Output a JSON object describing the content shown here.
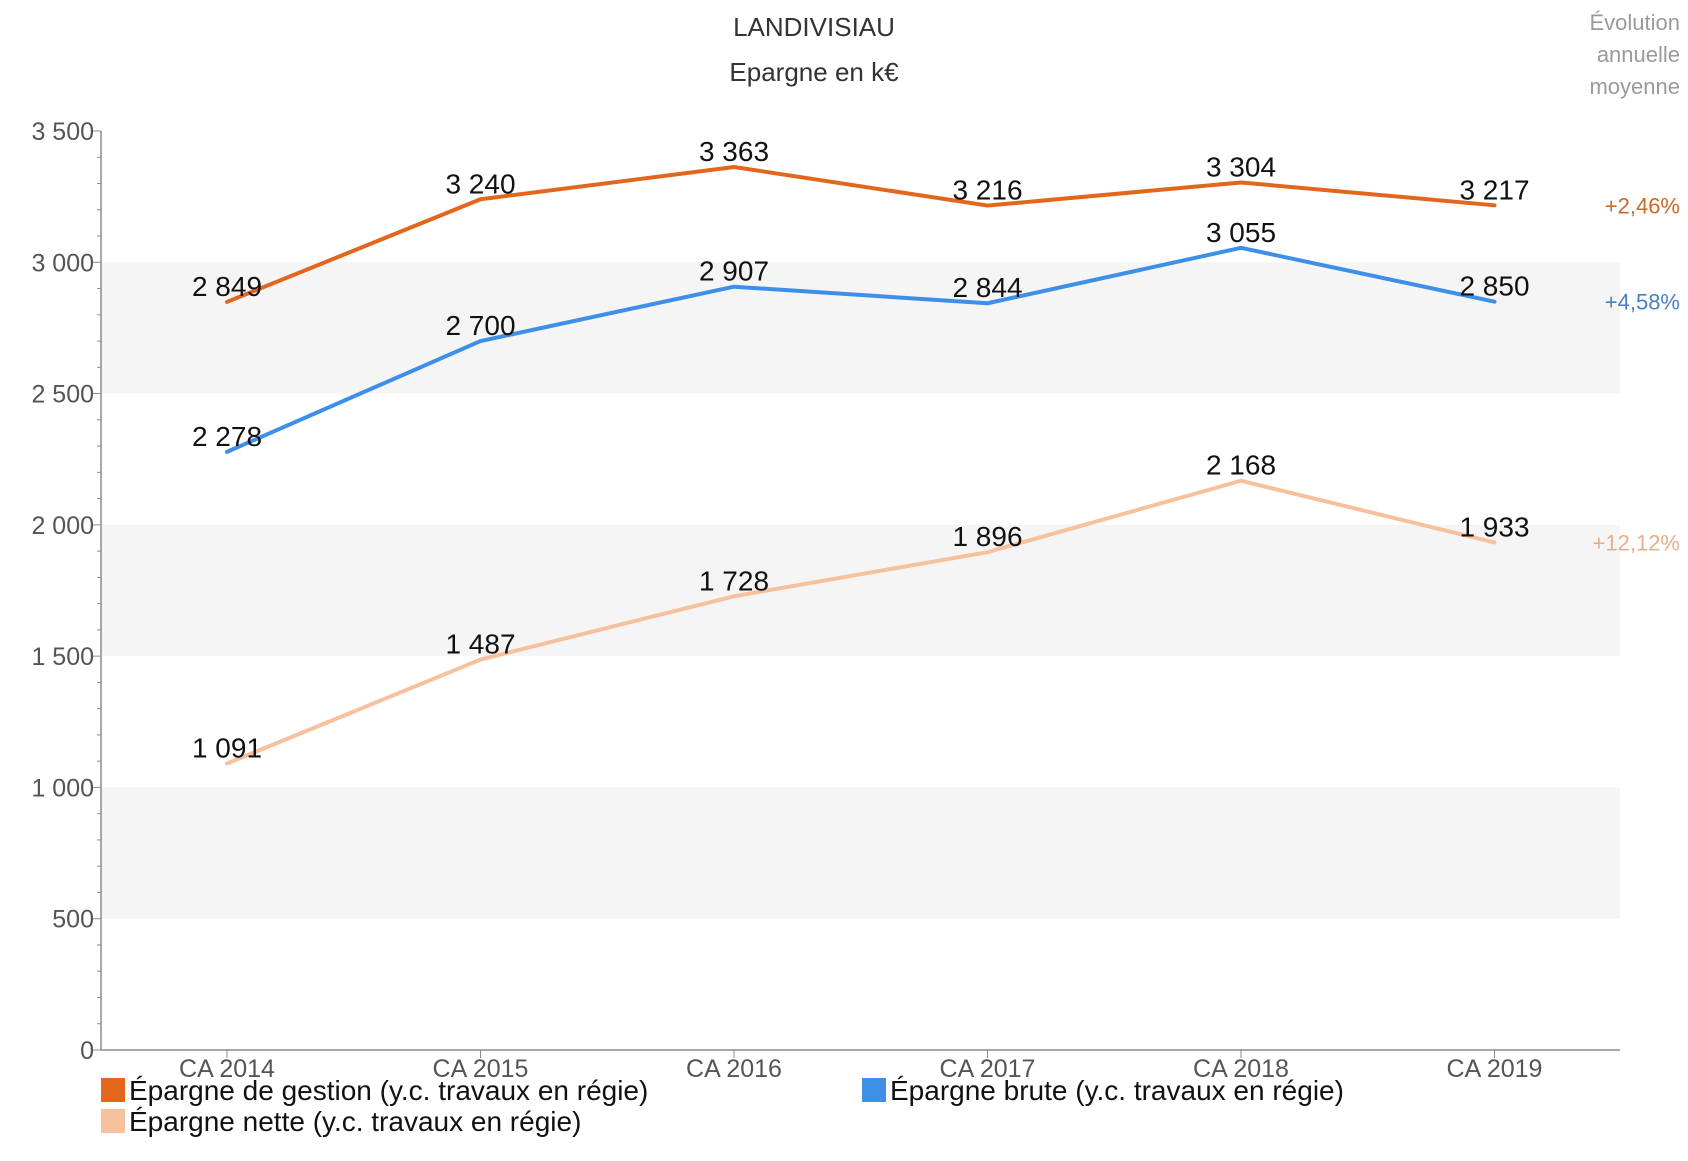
{
  "chart_data": {
    "type": "line",
    "title": "LANDIVISIAU",
    "subtitle": "Epargne en k€",
    "side_title": [
      "Évolution",
      "annuelle",
      "moyenne"
    ],
    "categories": [
      "CA 2014",
      "CA 2015",
      "CA 2016",
      "CA 2017",
      "CA 2018",
      "CA 2019"
    ],
    "ylim": [
      0,
      3500
    ],
    "yticks": [
      0,
      500,
      1000,
      1500,
      2000,
      2500,
      3000,
      3500
    ],
    "ytick_labels": [
      "0",
      "500",
      "1 000",
      "1 500",
      "2 000",
      "2 500",
      "3 000",
      "3 500"
    ],
    "grid": "alternating horizontal bands",
    "band_color": "#f5f5f5",
    "series": [
      {
        "name": "Épargne de gestion (y.c. travaux en régie)",
        "color": "#e2661c",
        "values": [
          2849,
          3240,
          3363,
          3216,
          3304,
          3217
        ],
        "labels": [
          "2 849",
          "3 240",
          "3 363",
          "3 216",
          "3 304",
          "3 217"
        ],
        "growth": "+2,46%",
        "growth_color": "#c96a2a"
      },
      {
        "name": "Épargne brute (y.c. travaux en régie)",
        "color": "#3d8fe8",
        "values": [
          2278,
          2700,
          2907,
          2844,
          3055,
          2850
        ],
        "labels": [
          "2 278",
          "2 700",
          "2 907",
          "2 844",
          "3 055",
          "2 850"
        ],
        "growth": "+4,58%",
        "growth_color": "#4a7fc1"
      },
      {
        "name": "Épargne nette (y.c. travaux en régie)",
        "color": "#f6c29e",
        "values": [
          1091,
          1487,
          1728,
          1896,
          2168,
          1933
        ],
        "labels": [
          "1 091",
          "1 487",
          "1 728",
          "1 896",
          "2 168",
          "1 933"
        ],
        "growth": "+12,12%",
        "growth_color": "#e7b08a"
      }
    ],
    "legend": "bottom"
  }
}
